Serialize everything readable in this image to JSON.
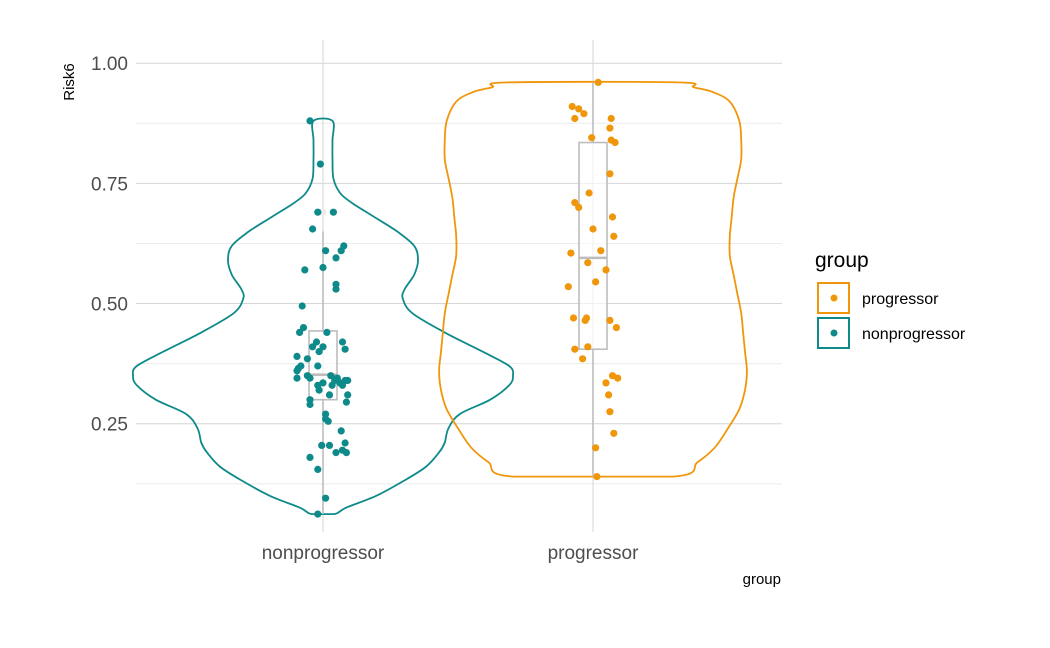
{
  "chart_data": {
    "type": "violin",
    "xlabel": "group",
    "ylabel": "Risk6",
    "categories": [
      "nonprogressor",
      "progressor"
    ],
    "ylim": [
      0.035,
      1.05
    ],
    "yticks": [
      0.25,
      0.5,
      0.75,
      1.0
    ],
    "ytick_labels": [
      "0.25",
      "0.50",
      "0.75",
      "1.00"
    ],
    "grid": true,
    "legend": {
      "title": "group",
      "placement": "right",
      "entries": [
        {
          "label": "progressor",
          "color": "#f0960a"
        },
        {
          "label": "nonprogressor",
          "color": "#0f8a8a"
        }
      ]
    },
    "series": [
      {
        "name": "nonprogressor",
        "color": "#0f8a8a",
        "violin": {
          "min": 0.062,
          "max": 0.88,
          "profile": [
            [
              0.062,
              0.06
            ],
            [
              0.075,
              0.12
            ],
            [
              0.1,
              0.28
            ],
            [
              0.13,
              0.42
            ],
            [
              0.16,
              0.54
            ],
            [
              0.19,
              0.61
            ],
            [
              0.21,
              0.64
            ],
            [
              0.24,
              0.66
            ],
            [
              0.27,
              0.72
            ],
            [
              0.3,
              0.88
            ],
            [
              0.33,
              0.98
            ],
            [
              0.35,
              1.0
            ],
            [
              0.37,
              0.98
            ],
            [
              0.4,
              0.84
            ],
            [
              0.44,
              0.64
            ],
            [
              0.48,
              0.47
            ],
            [
              0.51,
              0.42
            ],
            [
              0.53,
              0.43
            ],
            [
              0.56,
              0.48
            ],
            [
              0.59,
              0.5
            ],
            [
              0.62,
              0.48
            ],
            [
              0.65,
              0.39
            ],
            [
              0.68,
              0.27
            ],
            [
              0.71,
              0.15
            ],
            [
              0.73,
              0.09
            ],
            [
              0.76,
              0.055
            ],
            [
              0.8,
              0.05
            ],
            [
              0.84,
              0.05
            ],
            [
              0.88,
              0.05
            ]
          ]
        },
        "box": {
          "q1": 0.3,
          "median": 0.352,
          "q3": 0.443,
          "whisker_low": 0.062,
          "whisker_high": 0.65,
          "outlier": 0.69
        },
        "points": [
          [
            -0.1,
            0.88
          ],
          [
            -0.02,
            0.79
          ],
          [
            -0.04,
            0.69
          ],
          [
            -0.08,
            0.655
          ],
          [
            0.08,
            0.69
          ],
          [
            0.02,
            0.61
          ],
          [
            0.16,
            0.62
          ],
          [
            0.14,
            0.61
          ],
          [
            0.1,
            0.595
          ],
          [
            -0.14,
            0.57
          ],
          [
            0.0,
            0.575
          ],
          [
            -0.16,
            0.495
          ],
          [
            0.1,
            0.54
          ],
          [
            0.1,
            0.53
          ],
          [
            -0.15,
            0.45
          ],
          [
            -0.18,
            0.44
          ],
          [
            0.03,
            0.44
          ],
          [
            -0.08,
            0.41
          ],
          [
            -0.05,
            0.42
          ],
          [
            0.0,
            0.41
          ],
          [
            -0.03,
            0.4
          ],
          [
            0.15,
            0.42
          ],
          [
            0.17,
            0.405
          ],
          [
            -0.2,
            0.39
          ],
          [
            -0.19,
            0.365
          ],
          [
            -0.17,
            0.37
          ],
          [
            -0.2,
            0.36
          ],
          [
            -0.12,
            0.385
          ],
          [
            -0.04,
            0.37
          ],
          [
            0.06,
            0.35
          ],
          [
            0.09,
            0.34
          ],
          [
            0.11,
            0.345
          ],
          [
            0.13,
            0.335
          ],
          [
            0.17,
            0.34
          ],
          [
            0.19,
            0.34
          ],
          [
            0.07,
            0.33
          ],
          [
            0.15,
            0.33
          ],
          [
            -0.12,
            0.35
          ],
          [
            -0.1,
            0.345
          ],
          [
            -0.04,
            0.33
          ],
          [
            -0.03,
            0.32
          ],
          [
            0.0,
            0.335
          ],
          [
            -0.2,
            0.345
          ],
          [
            -0.1,
            0.3
          ],
          [
            -0.1,
            0.29
          ],
          [
            0.05,
            0.31
          ],
          [
            0.19,
            0.31
          ],
          [
            0.18,
            0.295
          ],
          [
            0.02,
            0.27
          ],
          [
            0.02,
            0.26
          ],
          [
            0.04,
            0.255
          ],
          [
            0.14,
            0.235
          ],
          [
            -0.01,
            0.205
          ],
          [
            0.05,
            0.205
          ],
          [
            0.1,
            0.19
          ],
          [
            0.17,
            0.21
          ],
          [
            0.18,
            0.19
          ],
          [
            0.15,
            0.195
          ],
          [
            -0.1,
            0.18
          ],
          [
            -0.04,
            0.155
          ],
          [
            0.02,
            0.095
          ],
          [
            -0.04,
            0.062
          ]
        ]
      },
      {
        "name": "progressor",
        "color": "#f0960a",
        "violin": {
          "min": 0.14,
          "max": 0.96,
          "profile": [
            [
              0.14,
              0.42
            ],
            [
              0.17,
              0.55
            ],
            [
              0.2,
              0.64
            ],
            [
              0.24,
              0.71
            ],
            [
              0.28,
              0.77
            ],
            [
              0.32,
              0.8
            ],
            [
              0.36,
              0.81
            ],
            [
              0.4,
              0.8
            ],
            [
              0.44,
              0.79
            ],
            [
              0.48,
              0.78
            ],
            [
              0.52,
              0.76
            ],
            [
              0.56,
              0.74
            ],
            [
              0.6,
              0.72
            ],
            [
              0.64,
              0.72
            ],
            [
              0.68,
              0.73
            ],
            [
              0.72,
              0.74
            ],
            [
              0.76,
              0.76
            ],
            [
              0.8,
              0.78
            ],
            [
              0.84,
              0.78
            ],
            [
              0.88,
              0.77
            ],
            [
              0.92,
              0.72
            ],
            [
              0.94,
              0.63
            ],
            [
              0.95,
              0.53
            ],
            [
              0.96,
              0.45
            ]
          ]
        },
        "box": {
          "q1": 0.405,
          "median": 0.595,
          "q3": 0.835,
          "whisker_low": 0.14,
          "whisker_high": 0.96
        },
        "points": [
          [
            0.04,
            0.96
          ],
          [
            -0.16,
            0.91
          ],
          [
            -0.11,
            0.905
          ],
          [
            -0.07,
            0.895
          ],
          [
            -0.14,
            0.885
          ],
          [
            0.14,
            0.885
          ],
          [
            0.13,
            0.865
          ],
          [
            -0.01,
            0.845
          ],
          [
            0.14,
            0.84
          ],
          [
            0.17,
            0.835
          ],
          [
            0.13,
            0.77
          ],
          [
            -0.03,
            0.73
          ],
          [
            -0.14,
            0.71
          ],
          [
            -0.11,
            0.7
          ],
          [
            0.15,
            0.68
          ],
          [
            0.0,
            0.655
          ],
          [
            0.16,
            0.64
          ],
          [
            0.06,
            0.61
          ],
          [
            -0.17,
            0.605
          ],
          [
            -0.04,
            0.585
          ],
          [
            0.1,
            0.57
          ],
          [
            0.02,
            0.545
          ],
          [
            -0.19,
            0.535
          ],
          [
            -0.15,
            0.47
          ],
          [
            -0.05,
            0.47
          ],
          [
            -0.06,
            0.465
          ],
          [
            0.13,
            0.465
          ],
          [
            0.18,
            0.45
          ],
          [
            -0.14,
            0.405
          ],
          [
            -0.04,
            0.41
          ],
          [
            -0.08,
            0.385
          ],
          [
            0.1,
            0.335
          ],
          [
            0.15,
            0.35
          ],
          [
            0.19,
            0.345
          ],
          [
            0.12,
            0.31
          ],
          [
            0.13,
            0.275
          ],
          [
            0.16,
            0.23
          ],
          [
            0.02,
            0.2
          ],
          [
            0.03,
            0.14
          ]
        ]
      }
    ]
  }
}
